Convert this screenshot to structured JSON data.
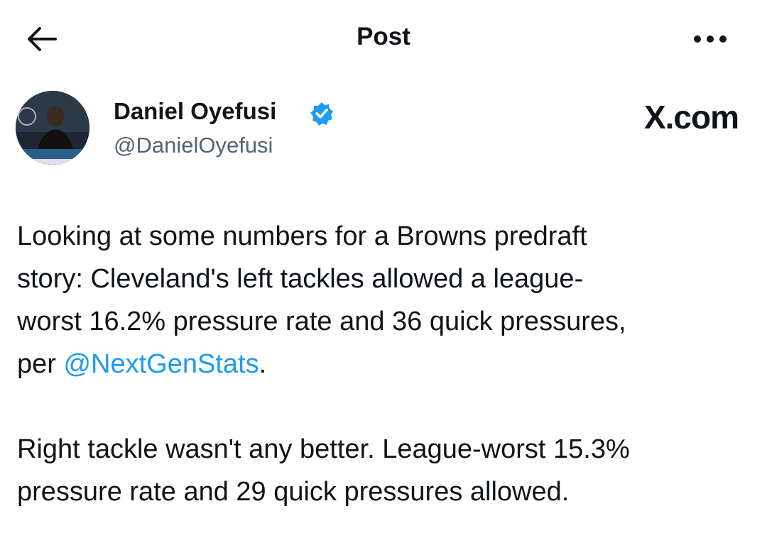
{
  "header": {
    "title": "Post"
  },
  "author": {
    "name": "Daniel Oyefusi",
    "handle": "@DanielOyefusi"
  },
  "watermark": "X.com",
  "post": {
    "paragraphs": [
      {
        "lines": [
          "Looking at some numbers for a Browns predraft",
          "story: Cleveland's left tackles allowed a league-",
          "worst 16.2% pressure rate and 36 quick pressures,"
        ],
        "last_line": {
          "before": "per ",
          "mention": "@NextGenStats",
          "after": "."
        }
      },
      {
        "lines": [
          "Right tackle wasn't any better. League-worst 15.3%",
          "pressure rate and 29 quick pressures allowed."
        ]
      }
    ]
  }
}
